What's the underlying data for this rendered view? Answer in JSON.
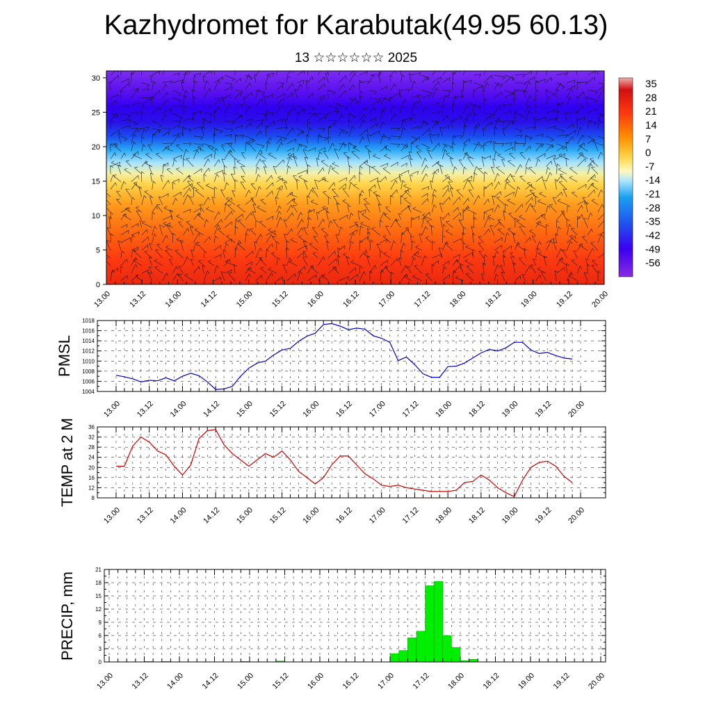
{
  "title": "Kazhydromet for Karabutak(49.95 60.13)",
  "subtitle": "13 ☆☆☆☆☆☆ 2025",
  "x_tick_labels": [
    "13.00",
    "13.12",
    "14.00",
    "14.12",
    "15.00",
    "15.12",
    "16.00",
    "16.12",
    "17.00",
    "17.12",
    "18.00",
    "18.12",
    "19.00",
    "19.12",
    "20.00"
  ],
  "chart_data": [
    {
      "type": "heatmap",
      "title": "",
      "xlabel": "",
      "ylabel": "",
      "y_ticks": [
        0,
        5,
        10,
        15,
        20,
        25,
        30
      ],
      "ylim": [
        0,
        31
      ],
      "colorbar_ticks": [
        35,
        28,
        21,
        14,
        7,
        0,
        -7,
        -14,
        -21,
        -28,
        -35,
        -42,
        -49,
        -56
      ],
      "colorbar_range": [
        -63,
        38
      ],
      "temperature_profile": [
        {
          "level": 0,
          "value": 22
        },
        {
          "level": 3,
          "value": 20
        },
        {
          "level": 6,
          "value": 14
        },
        {
          "level": 9,
          "value": 6
        },
        {
          "level": 12,
          "value": -2
        },
        {
          "level": 14,
          "value": -10
        },
        {
          "level": 16,
          "value": -18
        },
        {
          "level": 18,
          "value": -30
        },
        {
          "level": 20,
          "value": -40
        },
        {
          "level": 22,
          "value": -55
        },
        {
          "level": 24,
          "value": -60
        },
        {
          "level": 26,
          "value": -57
        },
        {
          "level": 28,
          "value": -53
        },
        {
          "level": 31,
          "value": -50
        }
      ],
      "vectors": "wind barbs overlay"
    },
    {
      "type": "line",
      "ylabel": "PMSL",
      "ylim": [
        1004,
        1018
      ],
      "y_ticks": [
        1004,
        1006,
        1008,
        1010,
        1012,
        1014,
        1016,
        1018
      ],
      "color": "#0000cc",
      "series": [
        {
          "x": [
            0,
            3,
            6,
            9,
            12,
            15,
            18,
            21,
            24,
            27,
            30,
            33,
            36,
            39,
            42,
            45,
            48,
            51,
            54,
            57,
            60,
            63,
            66,
            69,
            72,
            75,
            78,
            81,
            84,
            87,
            90,
            93,
            96,
            99,
            102,
            105,
            108,
            111,
            114,
            117,
            120,
            123,
            126,
            129,
            132,
            135,
            138,
            141,
            144,
            147,
            150,
            153,
            156,
            159,
            162,
            165,
            168
          ],
          "values": [
            1007.2,
            1006.9,
            1006.5,
            1005.9,
            1006.2,
            1006.1,
            1006.7,
            1006.1,
            1007.0,
            1007.6,
            1007.1,
            1005.9,
            1004.4,
            1004.5,
            1005.0,
            1007.0,
            1008.6,
            1009.6,
            1010.0,
            1011.2,
            1012.2,
            1012.5,
            1013.9,
            1014.9,
            1015.5,
            1017.2,
            1017.4,
            1016.9,
            1016.2,
            1016.5,
            1016.3,
            1015.0,
            1014.5,
            1013.7,
            1010.1,
            1010.8,
            1009.3,
            1007.5,
            1006.8,
            1006.8,
            1008.9,
            1009.0,
            1009.6,
            1010.6,
            1011.6,
            1012.3,
            1012.0,
            1012.6,
            1013.7,
            1013.7,
            1012.2,
            1011.5,
            1011.7,
            1011.1,
            1010.6,
            1010.4,
            null
          ]
        }
      ]
    },
    {
      "type": "line",
      "ylabel": "TEMP at 2 M",
      "ylim": [
        8,
        36
      ],
      "y_ticks": [
        8,
        12,
        16,
        20,
        24,
        28,
        32,
        36
      ],
      "color": "#cc0000",
      "series": [
        {
          "x": [
            0,
            3,
            6,
            9,
            12,
            15,
            18,
            21,
            24,
            27,
            30,
            33,
            36,
            39,
            42,
            45,
            48,
            51,
            54,
            57,
            60,
            63,
            66,
            69,
            72,
            75,
            78,
            81,
            84,
            87,
            90,
            93,
            96,
            99,
            102,
            105,
            108,
            111,
            114,
            117,
            120,
            123,
            126,
            129,
            132,
            135,
            138,
            141,
            144,
            147,
            150,
            153,
            156,
            159,
            162,
            165
          ],
          "values": [
            20.5,
            20.5,
            28.5,
            32.0,
            30.0,
            26.5,
            25.0,
            20.5,
            17.0,
            21.0,
            31.5,
            34.5,
            35.0,
            29.0,
            25.5,
            23.0,
            20.5,
            23.0,
            25.5,
            24.0,
            26.5,
            23.0,
            18.5,
            16.0,
            13.5,
            16.0,
            21.0,
            24.5,
            24.5,
            21.0,
            17.5,
            15.5,
            13.0,
            12.5,
            13.0,
            12.0,
            11.5,
            11.0,
            10.5,
            10.5,
            10.5,
            11.0,
            14.0,
            14.5,
            17.0,
            15.0,
            12.0,
            10.0,
            8.5,
            15.0,
            20.0,
            22.0,
            22.5,
            20.5,
            16.5,
            14.0
          ]
        }
      ]
    },
    {
      "type": "bar",
      "ylabel": "PRECIP, mm",
      "ylim": [
        0,
        21
      ],
      "y_ticks": [
        0,
        3,
        6,
        9,
        12,
        15,
        18,
        21
      ],
      "color": "#00ee00",
      "bar_width_hours": 3,
      "bars": [
        {
          "x": 12,
          "value": 0.1
        },
        {
          "x": 18,
          "value": 0.1
        },
        {
          "x": 45,
          "value": 0.1
        },
        {
          "x": 57,
          "value": 0.2
        },
        {
          "x": 96,
          "value": 1.9
        },
        {
          "x": 99,
          "value": 2.6
        },
        {
          "x": 102,
          "value": 5.5
        },
        {
          "x": 105,
          "value": 7.0
        },
        {
          "x": 108,
          "value": 17.3
        },
        {
          "x": 111,
          "value": 18.3
        },
        {
          "x": 114,
          "value": 6.0
        },
        {
          "x": 117,
          "value": 3.3
        },
        {
          "x": 120,
          "value": 0.3
        },
        {
          "x": 123,
          "value": 0.6
        }
      ]
    }
  ]
}
